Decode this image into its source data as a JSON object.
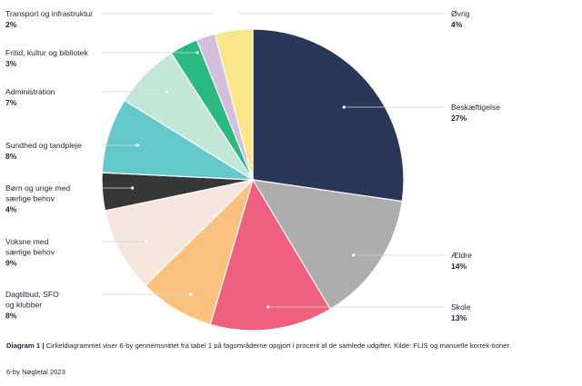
{
  "chart_data": {
    "type": "pie",
    "start": "top",
    "direction": "clockwise",
    "slices": [
      {
        "label": [
          "Beskæftigelse"
        ],
        "value": 27,
        "value_text": "27%",
        "color": "#2b3759",
        "side": "right"
      },
      {
        "label": [
          "Ældre"
        ],
        "value": 14,
        "value_text": "14%",
        "color": "#acadac",
        "side": "right"
      },
      {
        "label": [
          "Skole"
        ],
        "value": 13,
        "value_text": "13%",
        "color": "#ef5f7e",
        "side": "right"
      },
      {
        "label": [
          "Dagtilbud, SFO",
          "og klubber"
        ],
        "value": 8,
        "value_text": "8%",
        "color": "#fac27e",
        "side": "left"
      },
      {
        "label": [
          "Voksne med",
          "særlige behov"
        ],
        "value": 9,
        "value_text": "9%",
        "color": "#f5e7de",
        "side": "left"
      },
      {
        "label": [
          "Børn og unge med",
          "særlige behov"
        ],
        "value": 4,
        "value_text": "4%",
        "color": "#363837",
        "side": "left"
      },
      {
        "label": [
          "Sundhed og tandpleje"
        ],
        "value": 8,
        "value_text": "8%",
        "color": "#63c9cb",
        "side": "left"
      },
      {
        "label": [
          "Administration"
        ],
        "value": 7,
        "value_text": "7%",
        "color": "#c4e6d6",
        "side": "left"
      },
      {
        "label": [
          "Fritid, kultur og bibliotek"
        ],
        "value": 3,
        "value_text": "3%",
        "color": "#2aba80",
        "side": "left"
      },
      {
        "label": [
          "Transport og infrastruktur"
        ],
        "value": 2,
        "value_text": "2%",
        "color": "#d3bedd",
        "side": "left"
      },
      {
        "label": [
          "Øvrig"
        ],
        "value": 4,
        "value_text": "4%",
        "color": "#f8e688",
        "side": "right"
      }
    ]
  },
  "caption": {
    "prefix": "Diagram 1",
    "separator": " | ",
    "text": "Cirkeldiagrammet viser 6-by gennemsnittet fra tabel 1 på fagområderne opgjort i procent af de samlede udgifter. Kilde: FLIS og manuelle korrek-tioner."
  },
  "source": "6-by Nøgletal 2023"
}
